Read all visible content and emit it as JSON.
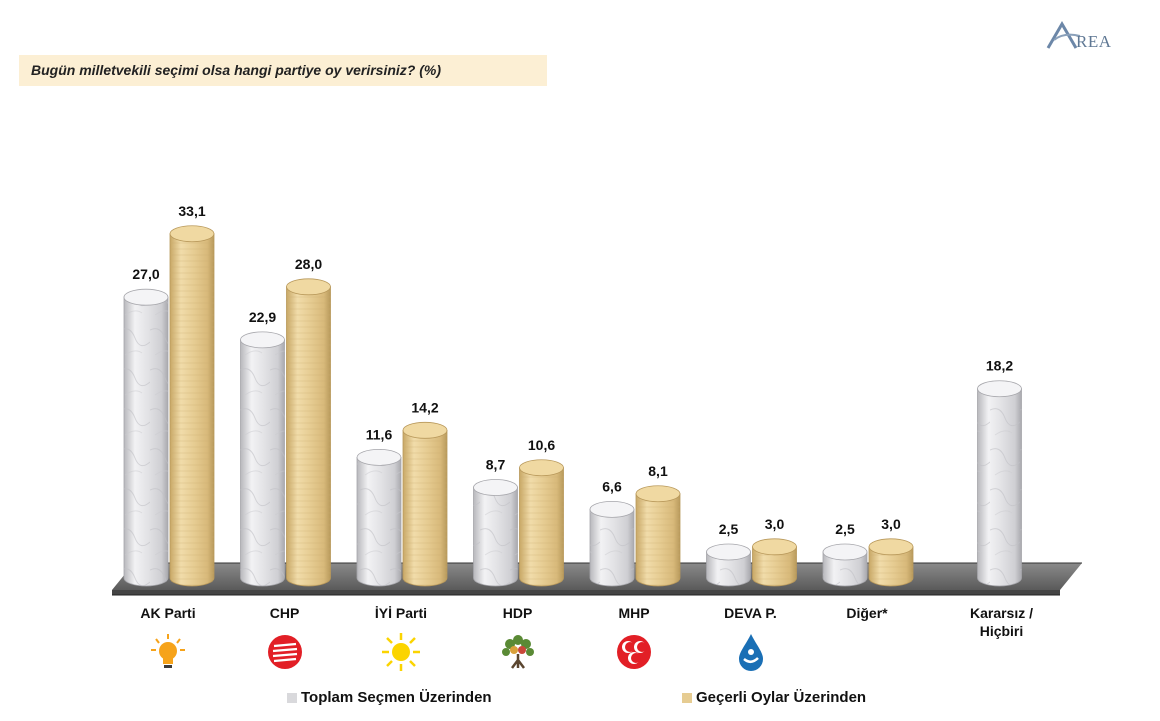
{
  "logo": {
    "text": "REA",
    "initial": "A"
  },
  "question": "Bugün milletvekili seçimi olsa hangi partiye oy verirsiniz? (%)",
  "colors": {
    "marble": "#e6e6e8",
    "gold": "#e6cc92",
    "question_bg": "#fcefd4",
    "akp": "#f6a31a",
    "chp": "#e21f26",
    "iyi": "#fbd400",
    "hdp": "#5a8a35",
    "mhp": "#e21f26",
    "deva": "#1a6fb5"
  },
  "chart_data": {
    "type": "bar",
    "categories": [
      "AK Parti",
      "CHP",
      "İYİ Parti",
      "HDP",
      "MHP",
      "DEVA P.",
      "Diğer*",
      "Kararsız / Hiçbiri"
    ],
    "series": [
      {
        "name": "Toplam Seçmen Üzerinden",
        "values": [
          27.0,
          22.9,
          11.6,
          8.7,
          6.6,
          2.5,
          2.5,
          18.2
        ],
        "labels": [
          "27,0",
          "22,9",
          "11,6",
          "8,7",
          "6,6",
          "2,5",
          "2,5",
          "18,2"
        ]
      },
      {
        "name": "Geçerli Oylar Üzerinden",
        "values": [
          33.1,
          28.0,
          14.2,
          10.6,
          8.1,
          3.0,
          3.0,
          null
        ],
        "labels": [
          "33,1",
          "28,0",
          "14,2",
          "10,6",
          "8,1",
          "3,0",
          "3,0",
          null
        ]
      }
    ],
    "title": "Bugün milletvekili seçimi olsa hangi partiye oy verirsiniz? (%)",
    "ylim": [
      0,
      35
    ],
    "grid": false,
    "legend": "bottom"
  },
  "categories_display": [
    {
      "line1": "AK Parti",
      "line2": "",
      "icon": "akp-lightbulb-icon"
    },
    {
      "line1": "CHP",
      "line2": "",
      "icon": "chp-six-arrows-icon"
    },
    {
      "line1": "İYİ Parti",
      "line2": "",
      "icon": "iyi-sun-icon"
    },
    {
      "line1": "HDP",
      "line2": "",
      "icon": "hdp-tree-icon"
    },
    {
      "line1": "MHP",
      "line2": "",
      "icon": "mhp-crescents-icon"
    },
    {
      "line1": "DEVA P.",
      "line2": "",
      "icon": "deva-drop-icon"
    },
    {
      "line1": "Diğer*",
      "line2": "",
      "icon": ""
    },
    {
      "line1": "Kararsız /",
      "line2": "Hiçbiri",
      "icon": ""
    }
  ],
  "legend": [
    {
      "label": "Toplam Seçmen Üzerinden",
      "color": "#d9d9dc"
    },
    {
      "label": "Geçerli Oylar Üzerinden",
      "color": "#e6cc92"
    }
  ]
}
